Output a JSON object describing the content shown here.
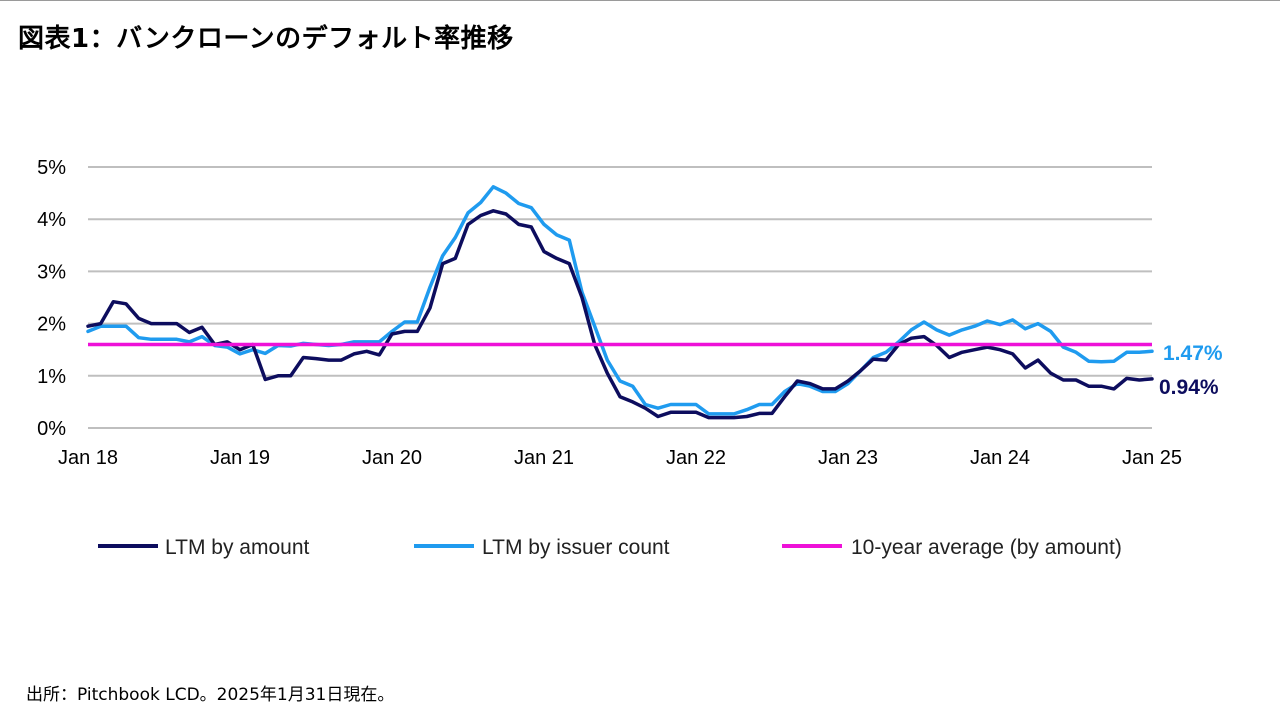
{
  "title": "図表1：バンクローンのデフォルト率推移",
  "source": "出所：Pitchbook LCD。2025年1月31日現在。",
  "chart_data": {
    "type": "line",
    "x_labels": [
      "Jan 18",
      "Jan 19",
      "Jan 20",
      "Jan 21",
      "Jan 22",
      "Jan 23",
      "Jan 24",
      "Jan 25"
    ],
    "y_ticks": [
      "0%",
      "1%",
      "2%",
      "3%",
      "4%",
      "5%"
    ],
    "ylim": [
      0,
      5
    ],
    "grid": true,
    "legend_position": "bottom",
    "series": [
      {
        "name": "LTM by amount",
        "color": "#0d0d5e",
        "end_label": "0.94%",
        "values": [
          1.95,
          2.0,
          2.42,
          2.38,
          2.1,
          2.0,
          2.0,
          2.0,
          1.83,
          1.93,
          1.6,
          1.65,
          1.5,
          1.6,
          0.93,
          1.0,
          1.0,
          1.35,
          1.33,
          1.3,
          1.3,
          1.42,
          1.47,
          1.4,
          1.8,
          1.85,
          1.85,
          2.3,
          3.15,
          3.25,
          3.9,
          4.07,
          4.16,
          4.1,
          3.9,
          3.85,
          3.38,
          3.25,
          3.15,
          2.5,
          1.6,
          1.05,
          0.6,
          0.5,
          0.38,
          0.22,
          0.3,
          0.3,
          0.3,
          0.2,
          0.2,
          0.2,
          0.22,
          0.28,
          0.28,
          0.6,
          0.9,
          0.85,
          0.75,
          0.75,
          0.9,
          1.1,
          1.32,
          1.3,
          1.6,
          1.72,
          1.75,
          1.58,
          1.35,
          1.45,
          1.5,
          1.55,
          1.5,
          1.42,
          1.15,
          1.3,
          1.05,
          0.92,
          0.92,
          0.8,
          0.8,
          0.75,
          0.95,
          0.92,
          0.94
        ]
      },
      {
        "name": "LTM by issuer count",
        "color": "#1f9bef",
        "end_label": "1.47%",
        "values": [
          1.85,
          1.95,
          1.95,
          1.95,
          1.73,
          1.7,
          1.7,
          1.7,
          1.65,
          1.75,
          1.58,
          1.55,
          1.42,
          1.5,
          1.43,
          1.58,
          1.57,
          1.62,
          1.6,
          1.58,
          1.6,
          1.65,
          1.65,
          1.65,
          1.85,
          2.03,
          2.03,
          2.7,
          3.3,
          3.65,
          4.12,
          4.32,
          4.62,
          4.5,
          4.3,
          4.22,
          3.9,
          3.7,
          3.6,
          2.6,
          1.95,
          1.3,
          0.9,
          0.8,
          0.45,
          0.38,
          0.45,
          0.45,
          0.45,
          0.27,
          0.27,
          0.27,
          0.35,
          0.45,
          0.45,
          0.7,
          0.85,
          0.8,
          0.7,
          0.7,
          0.85,
          1.1,
          1.35,
          1.45,
          1.65,
          1.88,
          2.03,
          1.88,
          1.78,
          1.88,
          1.95,
          2.05,
          1.98,
          2.07,
          1.9,
          2.0,
          1.85,
          1.55,
          1.45,
          1.28,
          1.27,
          1.28,
          1.45,
          1.45,
          1.47
        ]
      },
      {
        "name": "10-year average (by amount)",
        "color": "#ee11d8",
        "constant": 1.6
      }
    ]
  }
}
